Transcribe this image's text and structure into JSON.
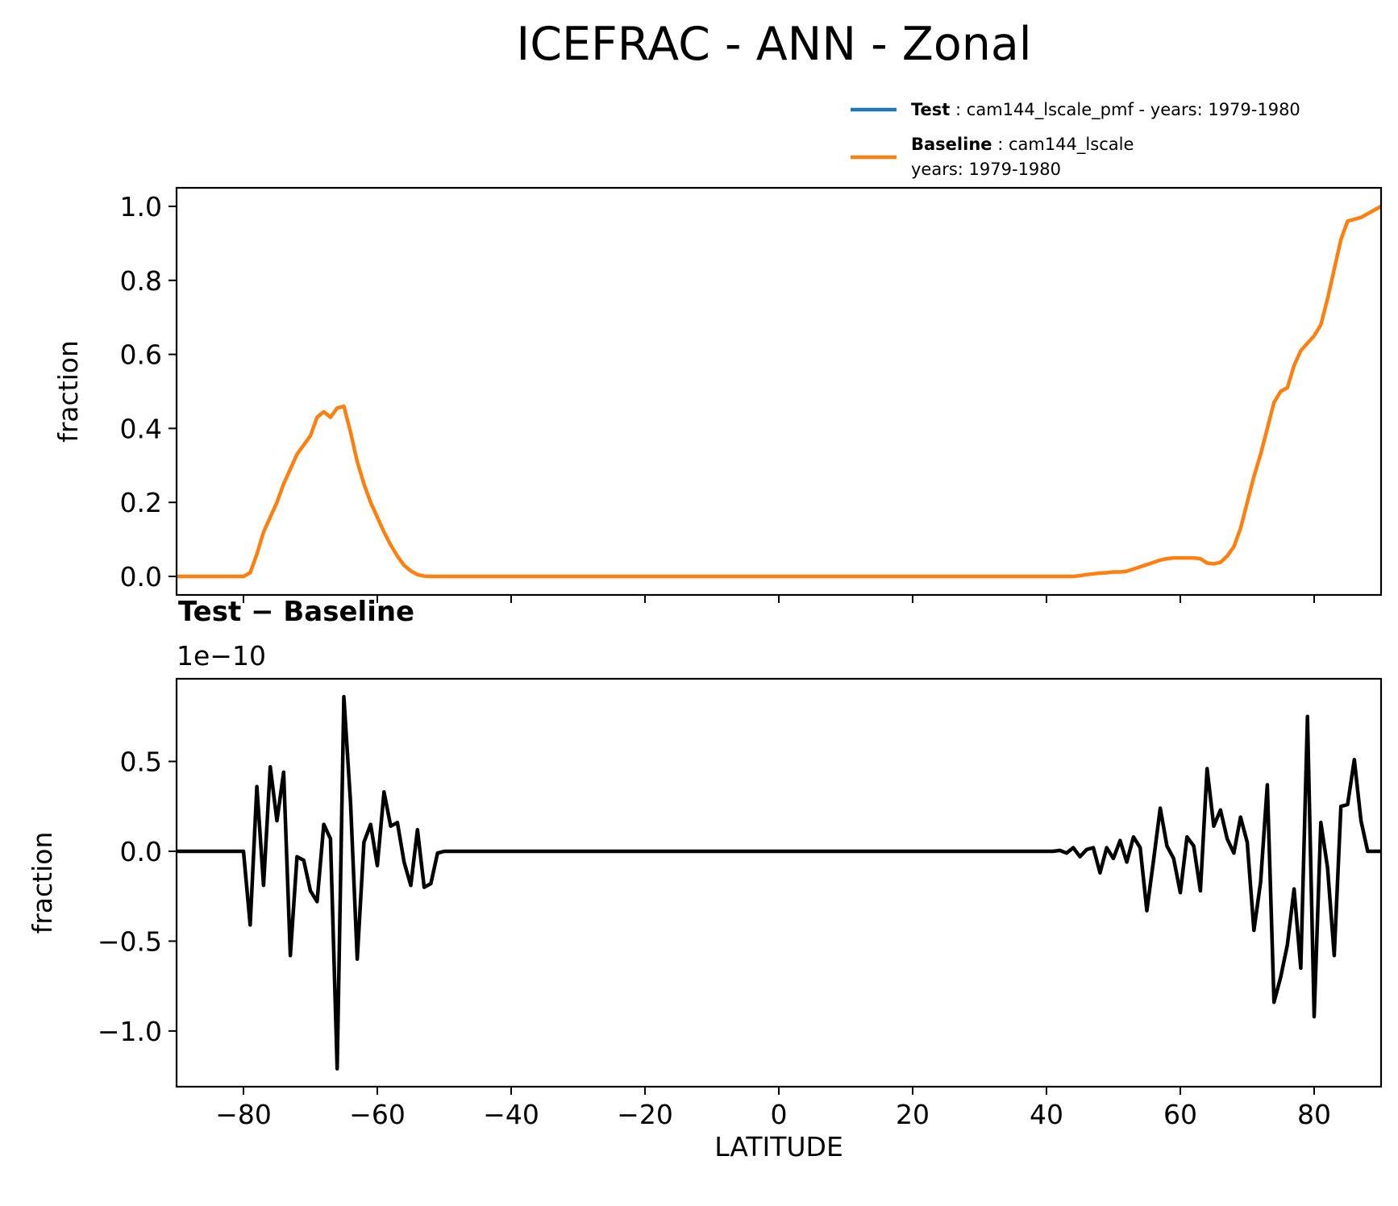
{
  "figure": {
    "title": "ICEFRAC - ANN - Zonal"
  },
  "legend": {
    "test_label": "Test",
    "test_text": "cam144_lscale_pmf - years: 1979-1980",
    "baseline_label": "Baseline",
    "baseline_text_1": "cam144_lscale",
    "baseline_text_2": "years: 1979-1980",
    "separator": ":"
  },
  "colors": {
    "test": "#1f77b4",
    "baseline": "#ff7f0e",
    "diff": "#000000"
  },
  "chart_data": [
    {
      "type": "line",
      "xlabel": "",
      "ylabel": "fraction",
      "xlim": [
        -90,
        90
      ],
      "ylim": [
        -0.05,
        1.05
      ],
      "xticks": [
        -80,
        -60,
        -40,
        -20,
        0,
        20,
        40,
        60,
        80
      ],
      "xtick_labels_shown": false,
      "yticks": [
        0.0,
        0.2,
        0.4,
        0.6,
        0.8,
        1.0
      ],
      "ytick_labels": [
        "0.0",
        "0.2",
        "0.4",
        "0.6",
        "0.8",
        "1.0"
      ],
      "legend_placement": "above-right",
      "series": [
        {
          "name": "Baseline",
          "color": "#ff7f0e",
          "points": [
            [
              -90,
              0
            ],
            [
              -80,
              0
            ],
            [
              -79,
              0.01
            ],
            [
              -78,
              0.06
            ],
            [
              -77,
              0.12
            ],
            [
              -76,
              0.16
            ],
            [
              -75,
              0.2
            ],
            [
              -74,
              0.25
            ],
            [
              -73,
              0.29
            ],
            [
              -72,
              0.33
            ],
            [
              -71,
              0.355
            ],
            [
              -70,
              0.38
            ],
            [
              -69,
              0.43
            ],
            [
              -68,
              0.445
            ],
            [
              -67,
              0.43
            ],
            [
              -66,
              0.455
            ],
            [
              -65,
              0.46
            ],
            [
              -64,
              0.39
            ],
            [
              -63,
              0.31
            ],
            [
              -62,
              0.25
            ],
            [
              -61,
              0.2
            ],
            [
              -60,
              0.16
            ],
            [
              -59,
              0.12
            ],
            [
              -58,
              0.085
            ],
            [
              -57,
              0.055
            ],
            [
              -56,
              0.03
            ],
            [
              -55,
              0.015
            ],
            [
              -54,
              0.005
            ],
            [
              -53,
              0.001
            ],
            [
              -52,
              0
            ],
            [
              0,
              0
            ],
            [
              40,
              0
            ],
            [
              44,
              0
            ],
            [
              45,
              0.002
            ],
            [
              46,
              0.005
            ],
            [
              47,
              0.007
            ],
            [
              48,
              0.009
            ],
            [
              49,
              0.01
            ],
            [
              50,
              0.012
            ],
            [
              51,
              0.012
            ],
            [
              52,
              0.014
            ],
            [
              53,
              0.02
            ],
            [
              54,
              0.026
            ],
            [
              55,
              0.032
            ],
            [
              56,
              0.038
            ],
            [
              57,
              0.044
            ],
            [
              58,
              0.048
            ],
            [
              59,
              0.05
            ],
            [
              60,
              0.05
            ],
            [
              61,
              0.05
            ],
            [
              62,
              0.05
            ],
            [
              63,
              0.048
            ],
            [
              64,
              0.036
            ],
            [
              65,
              0.034
            ],
            [
              66,
              0.038
            ],
            [
              67,
              0.055
            ],
            [
              68,
              0.08
            ],
            [
              69,
              0.13
            ],
            [
              70,
              0.2
            ],
            [
              71,
              0.27
            ],
            [
              72,
              0.33
            ],
            [
              73,
              0.4
            ],
            [
              74,
              0.47
            ],
            [
              75,
              0.5
            ],
            [
              76,
              0.51
            ],
            [
              77,
              0.57
            ],
            [
              78,
              0.61
            ],
            [
              79,
              0.63
            ],
            [
              80,
              0.65
            ],
            [
              81,
              0.68
            ],
            [
              82,
              0.75
            ],
            [
              83,
              0.83
            ],
            [
              84,
              0.91
            ],
            [
              85,
              0.96
            ],
            [
              86,
              0.965
            ],
            [
              87,
              0.97
            ],
            [
              88,
              0.98
            ],
            [
              89,
              0.99
            ],
            [
              90,
              1.0
            ]
          ]
        }
      ]
    },
    {
      "type": "line",
      "title": "Test − Baseline",
      "offset_text": "1e−10",
      "xlabel": "LATITUDE",
      "ylabel": "fraction",
      "xlim": [
        -90,
        90
      ],
      "ylim": [
        -1.31,
        0.96
      ],
      "xticks": [
        -80,
        -60,
        -40,
        -20,
        0,
        20,
        40,
        60,
        80
      ],
      "xtick_labels": [
        "−80",
        "−60",
        "−40",
        "−20",
        "0",
        "20",
        "40",
        "60",
        "80"
      ],
      "yticks": [
        -1.0,
        -0.5,
        0.0,
        0.5
      ],
      "ytick_labels": [
        "−1.0",
        "−0.5",
        "0.0",
        "0.5"
      ],
      "series": [
        {
          "color": "#000000",
          "points": [
            [
              -90,
              0
            ],
            [
              -80,
              0
            ],
            [
              -79,
              -0.41
            ],
            [
              -78,
              0.36
            ],
            [
              -77,
              -0.19
            ],
            [
              -76,
              0.47
            ],
            [
              -75,
              0.17
            ],
            [
              -74,
              0.44
            ],
            [
              -73,
              -0.58
            ],
            [
              -72,
              -0.03
            ],
            [
              -71,
              -0.05
            ],
            [
              -70,
              -0.22
            ],
            [
              -69,
              -0.28
            ],
            [
              -68,
              0.15
            ],
            [
              -67,
              0.07
            ],
            [
              -66,
              -1.21
            ],
            [
              -65,
              0.86
            ],
            [
              -64,
              0.27
            ],
            [
              -63,
              -0.6
            ],
            [
              -62,
              0.05
            ],
            [
              -61,
              0.15
            ],
            [
              -60,
              -0.08
            ],
            [
              -59,
              0.33
            ],
            [
              -58,
              0.14
            ],
            [
              -57,
              0.16
            ],
            [
              -56,
              -0.06
            ],
            [
              -55,
              -0.19
            ],
            [
              -54,
              0.12
            ],
            [
              -53,
              -0.2
            ],
            [
              -52,
              -0.18
            ],
            [
              -51,
              -0.01
            ],
            [
              -50,
              0
            ],
            [
              0,
              0
            ],
            [
              41,
              0
            ],
            [
              42,
              0.005
            ],
            [
              43,
              -0.01
            ],
            [
              44,
              0.02
            ],
            [
              45,
              -0.03
            ],
            [
              46,
              0.01
            ],
            [
              47,
              0.02
            ],
            [
              48,
              -0.12
            ],
            [
              49,
              0.02
            ],
            [
              50,
              -0.04
            ],
            [
              51,
              0.06
            ],
            [
              52,
              -0.06
            ],
            [
              53,
              0.08
            ],
            [
              54,
              0.02
            ],
            [
              55,
              -0.33
            ],
            [
              56,
              -0.05
            ],
            [
              57,
              0.24
            ],
            [
              58,
              0.03
            ],
            [
              59,
              -0.04
            ],
            [
              60,
              -0.23
            ],
            [
              61,
              0.08
            ],
            [
              62,
              0.03
            ],
            [
              63,
              -0.22
            ],
            [
              64,
              0.46
            ],
            [
              65,
              0.14
            ],
            [
              66,
              0.23
            ],
            [
              67,
              0.07
            ],
            [
              68,
              -0.01
            ],
            [
              69,
              0.19
            ],
            [
              70,
              0.05
            ],
            [
              71,
              -0.44
            ],
            [
              72,
              -0.17
            ],
            [
              73,
              0.37
            ],
            [
              74,
              -0.84
            ],
            [
              75,
              -0.7
            ],
            [
              76,
              -0.52
            ],
            [
              77,
              -0.21
            ],
            [
              78,
              -0.65
            ],
            [
              79,
              0.75
            ],
            [
              80,
              -0.92
            ],
            [
              81,
              0.16
            ],
            [
              82,
              -0.09
            ],
            [
              83,
              -0.58
            ],
            [
              84,
              0.25
            ],
            [
              85,
              0.26
            ],
            [
              86,
              0.51
            ],
            [
              87,
              0.17
            ],
            [
              88,
              0
            ],
            [
              90,
              0
            ]
          ]
        }
      ]
    }
  ]
}
